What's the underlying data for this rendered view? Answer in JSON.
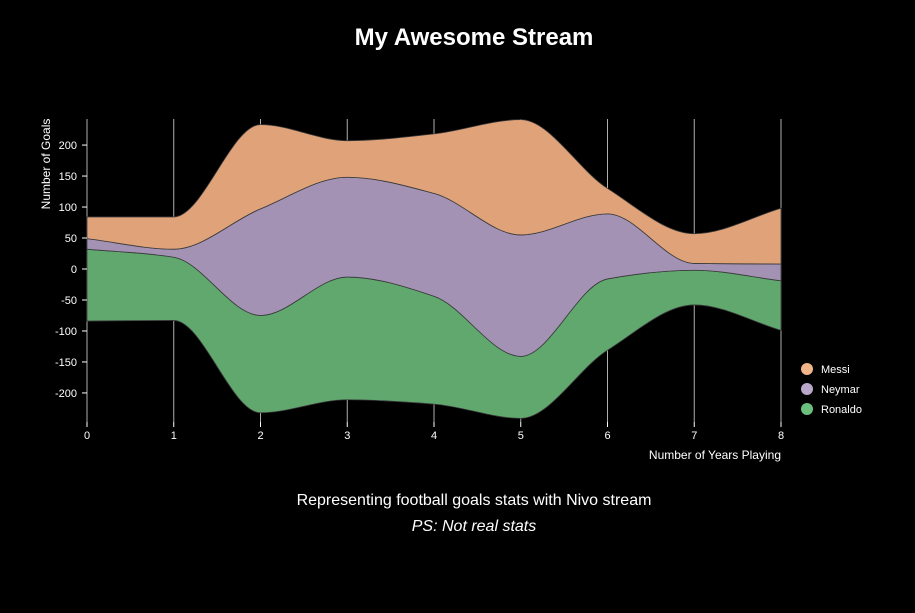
{
  "title": "My Awesome Stream",
  "caption": {
    "main": "Representing football goals stats with Nivo stream",
    "note": "PS: Not real stats"
  },
  "colors": {
    "background": "#000000",
    "Messi": "#e0a279",
    "Neymar": "#a392b4",
    "Ronaldo": "#61a86f",
    "legend_Messi": "#f2b589",
    "legend_Neymar": "#b9a8cb",
    "legend_Ronaldo": "#6cc07e",
    "grid": "#cccccc",
    "text": "#ffffff"
  },
  "chart_data": {
    "type": "area",
    "subtype": "stream",
    "title": "My Awesome Stream",
    "xlabel": "Number of Years Playing",
    "ylabel": "Number of Goals",
    "x": [
      0,
      1,
      2,
      3,
      4,
      5,
      6,
      7,
      8
    ],
    "x_ticks": [
      "0",
      "1",
      "2",
      "3",
      "4",
      "5",
      "6",
      "7",
      "8"
    ],
    "y_ticks": [
      "200",
      "150",
      "100",
      "50",
      "0",
      "-50",
      "-100",
      "-150",
      "-200"
    ],
    "y_tick_values": [
      200,
      150,
      100,
      50,
      0,
      -50,
      -100,
      -150,
      -200
    ],
    "ylim": [
      -245,
      245
    ],
    "grid": "vertical",
    "legend_position": "bottom-right",
    "stack_order": [
      "Ronaldo",
      "Neymar",
      "Messi"
    ],
    "baseline": [
      -84,
      -83,
      -232,
      -211,
      -218,
      -241,
      -131,
      -58,
      -99
    ],
    "series": [
      {
        "name": "Ronaldo",
        "values": [
          116,
          102,
          157,
          198,
          174,
          100,
          115,
          56,
          80
        ]
      },
      {
        "name": "Neymar",
        "values": [
          17,
          13,
          172,
          161,
          166,
          196,
          105,
          11,
          27
        ]
      },
      {
        "name": "Messi",
        "values": [
          35,
          52,
          136,
          59,
          96,
          186,
          41,
          48,
          90
        ]
      }
    ],
    "legend": [
      "Messi",
      "Neymar",
      "Ronaldo"
    ]
  }
}
